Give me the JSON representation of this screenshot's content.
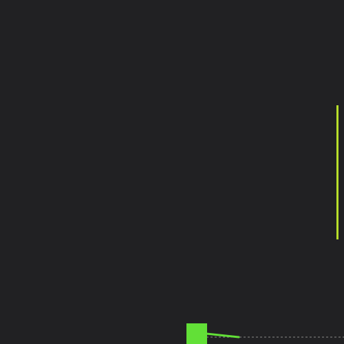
{
  "scene": {
    "background_color": "#212123",
    "player": {
      "label": "",
      "color": "#62e037"
    },
    "aim_line": {
      "color": "#62e037"
    },
    "trajectory": {
      "color": "#8a8a8a",
      "style": "dashed"
    },
    "goal_bar": {
      "color": "#b8df2a"
    }
  }
}
